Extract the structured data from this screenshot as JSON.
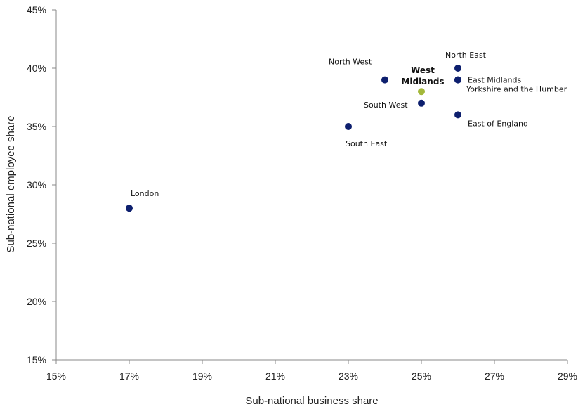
{
  "chart_data": {
    "type": "scatter",
    "title": "",
    "xlabel": "Sub-national business share",
    "ylabel": "Sub-national employee share",
    "xlim": [
      15,
      29
    ],
    "ylim": [
      15,
      45
    ],
    "x_ticks": [
      "15%",
      "17%",
      "19%",
      "21%",
      "23%",
      "25%",
      "27%",
      "29%"
    ],
    "y_ticks": [
      "15%",
      "20%",
      "25%",
      "30%",
      "35%",
      "40%",
      "45%"
    ],
    "grid": false,
    "legend": "none",
    "colors": {
      "default": "#0d1f6e",
      "highlight": "#a3b83a"
    },
    "points": [
      {
        "label": "London",
        "x": 17,
        "y": 28,
        "highlight": false
      },
      {
        "label": "South East",
        "x": 23,
        "y": 35,
        "highlight": false
      },
      {
        "label": "North West",
        "x": 24,
        "y": 39,
        "highlight": false
      },
      {
        "label": "South West",
        "x": 25,
        "y": 37,
        "highlight": false
      },
      {
        "label": "West Midlands",
        "label_lines": [
          "West",
          "Midlands"
        ],
        "x": 25,
        "y": 38,
        "highlight": true
      },
      {
        "label": "North East",
        "x": 26,
        "y": 40,
        "highlight": false
      },
      {
        "label": "East Midlands",
        "x": 26,
        "y": 39,
        "highlight": false
      },
      {
        "label": "Yorkshire and the Humber",
        "x": 26,
        "y": 39,
        "highlight": false
      },
      {
        "label": "East of England",
        "x": 26,
        "y": 36,
        "highlight": false
      }
    ]
  }
}
